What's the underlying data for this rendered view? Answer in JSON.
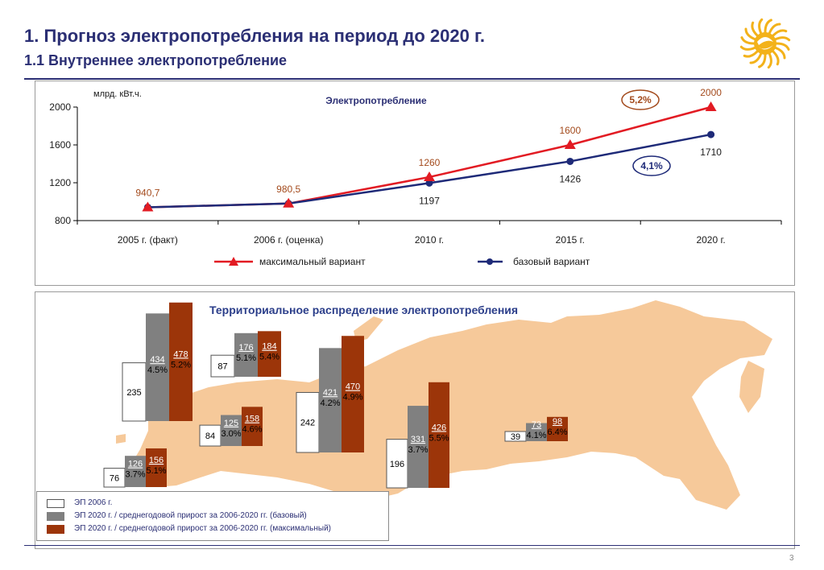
{
  "header": {
    "title": "1. Прогноз электропотребления на период до 2020 г.",
    "subtitle": "1.1 Внутреннее электропотребление"
  },
  "page_number": "3",
  "colors": {
    "title": "#2b2f74",
    "max_series": "#e21b23",
    "base_series": "#1e2a78",
    "ep2006": "#ffffff",
    "base_bar": "#808080",
    "max_bar": "#9c3509",
    "russia_fill": "#f6c99a"
  },
  "chart_data": [
    {
      "type": "line",
      "title": "Электропотребление",
      "ylabel": "млрд. кВт.ч.",
      "xlabel": "",
      "categories": [
        "2005 г. (факт)",
        "2006 г. (оценка)",
        "2010 г.",
        "2015 г.",
        "2020 г."
      ],
      "ylim": [
        800,
        2000
      ],
      "yticks": [
        800,
        1200,
        1600,
        2000
      ],
      "grid": false,
      "legend": "bottom",
      "series": [
        {
          "name": "максимальный вариант",
          "values": [
            940.7,
            980.5,
            1260,
            1600,
            2000
          ],
          "labels": [
            "940,7",
            "980,5",
            "1260",
            "1600",
            "2000"
          ],
          "marker": "triangle"
        },
        {
          "name": "базовый вариант",
          "values": [
            940.7,
            980.5,
            1197,
            1426,
            1710
          ],
          "labels": [
            "",
            "",
            "1197",
            "1426",
            "1710"
          ],
          "marker": "circle"
        }
      ],
      "annotations": [
        "5,2%",
        "4,1%"
      ]
    },
    {
      "type": "bar",
      "title": "Территориальное распределение электропотребления",
      "series_names": [
        "ЭП 2006 г.",
        "ЭП 2020 г. / среднегодовой прирост за 2006-2020 гг. (базовый)",
        "ЭП 2020 г. / среднегодовой прирост за 2006-2020 гг. (максимальный)"
      ],
      "groups": [
        {
          "ep2006": 235,
          "base": 434,
          "base_growth": "4.5%",
          "max": 478,
          "max_growth": "5.2%"
        },
        {
          "ep2006": 87,
          "base": 176,
          "base_growth": "5.1%",
          "max": 184,
          "max_growth": "5.4%"
        },
        {
          "ep2006": 84,
          "base": 125,
          "base_growth": "3.0%",
          "max": 158,
          "max_growth": "4.6%"
        },
        {
          "ep2006": 76,
          "base": 126,
          "base_growth": "3.7%",
          "max": 156,
          "max_growth": "5.1%"
        },
        {
          "ep2006": 242,
          "base": 421,
          "base_growth": "4.2%",
          "max": 470,
          "max_growth": "4.9%"
        },
        {
          "ep2006": 196,
          "base": 331,
          "base_growth": "3.7%",
          "max": 426,
          "max_growth": "5.5%"
        },
        {
          "ep2006": 39,
          "base": 73,
          "base_growth": "4.1%",
          "max": 98,
          "max_growth": "6.4%"
        }
      ]
    }
  ]
}
